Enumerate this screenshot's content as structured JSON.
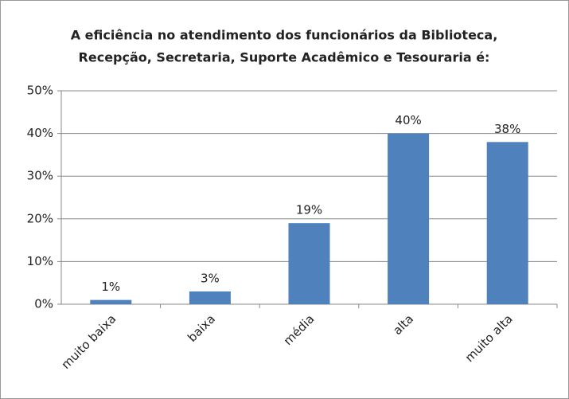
{
  "chart_data": {
    "type": "bar",
    "title": [
      "A eficiência no atendimento dos funcionários da Biblioteca,",
      "Recepção, Secretaria, Suporte Acadêmico e Tesouraria é:"
    ],
    "categories": [
      "muito baixa",
      "baixa",
      "média",
      "alta",
      "muito alta"
    ],
    "values": [
      1,
      3,
      19,
      40,
      38
    ],
    "value_labels": [
      "1%",
      "3%",
      "19%",
      "40%",
      "38%"
    ],
    "color": "#4f81bd",
    "ylim": [
      0,
      50
    ],
    "yticks": [
      {
        "value": 0,
        "label": "0%"
      },
      {
        "value": 10,
        "label": "10%"
      },
      {
        "value": 20,
        "label": "20%"
      },
      {
        "value": 30,
        "label": "30%"
      },
      {
        "value": 40,
        "label": "40%"
      },
      {
        "value": 50,
        "label": "50%"
      }
    ],
    "grid": true
  }
}
